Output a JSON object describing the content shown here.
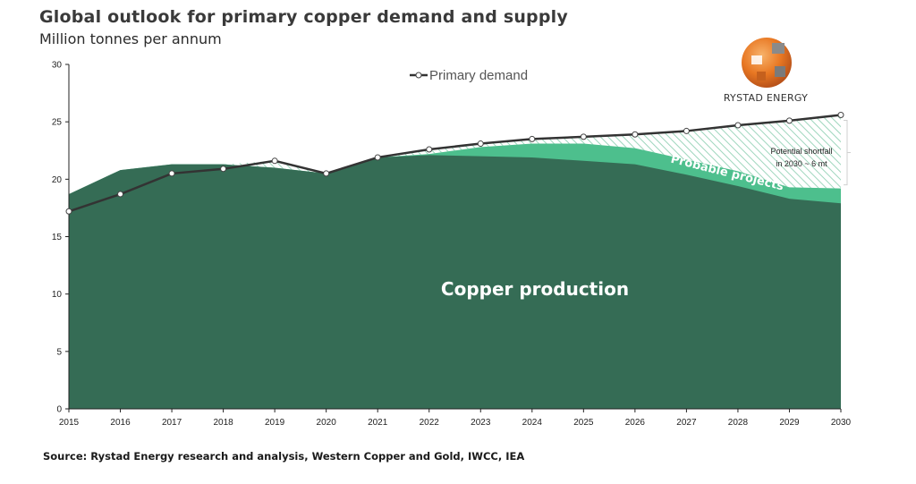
{
  "title": "Global outlook for primary copper demand and supply",
  "subtitle": "Million tonnes per annum",
  "source": "Source: Rystad Energy research and analysis, Western Copper and Gold, IWCC, IEA",
  "logo": {
    "text": "RYSTAD ENERGY"
  },
  "colors": {
    "production": "#356c55",
    "probable": "#4dbf8d",
    "shortfall_hatch": "#9ed6bd",
    "demand_line": "#333333"
  },
  "chart_data": {
    "type": "area",
    "x": [
      "2015",
      "2016",
      "2017",
      "2018",
      "2019",
      "2020",
      "2021",
      "2022",
      "2023",
      "2024",
      "2025",
      "2026",
      "2027",
      "2028",
      "2029",
      "2030"
    ],
    "ylim": [
      0,
      30
    ],
    "yticks": [
      "0",
      "5",
      "10",
      "15",
      "20",
      "25",
      "30"
    ],
    "grid": false,
    "legend_position": "top-center",
    "series": [
      {
        "name": "Primary demand",
        "kind": "line",
        "values": [
          17.2,
          18.7,
          20.5,
          20.9,
          21.6,
          20.5,
          21.9,
          22.6,
          23.1,
          23.5,
          23.7,
          23.9,
          24.2,
          24.7,
          25.1,
          25.6
        ]
      },
      {
        "kind": "area",
        "values": [
          18.7,
          20.8,
          21.3,
          21.3,
          21.0,
          20.5,
          21.9,
          22.1,
          22.0,
          21.9,
          21.6,
          21.3,
          20.4,
          19.4,
          18.3,
          17.9
        ]
      },
      {
        "kind": "area",
        "values": [
          18.7,
          20.8,
          21.3,
          21.3,
          21.0,
          20.5,
          21.9,
          22.2,
          22.8,
          23.1,
          23.1,
          22.7,
          21.7,
          20.7,
          19.3,
          19.2
        ]
      }
    ],
    "annotations": {
      "production_label": "Copper production",
      "probable_label": "Probable projects",
      "shortfall_line1": "Potential shortfall",
      "shortfall_line2": "in 2030 ~ 6 mt"
    }
  }
}
